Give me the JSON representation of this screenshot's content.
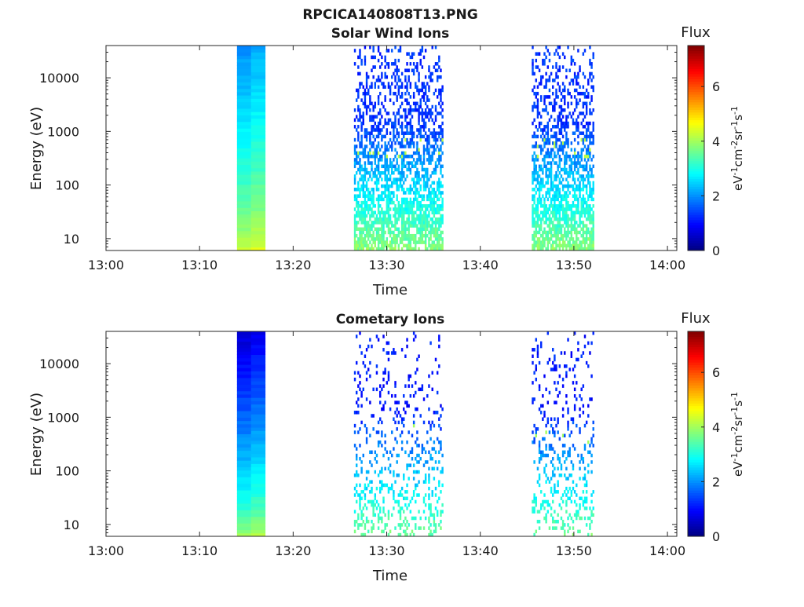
{
  "figure_title": "RPCICA140808T13.PNG",
  "colormap": [
    "#00007f",
    "#0000ff",
    "#007fff",
    "#00ffff",
    "#7fff7f",
    "#ffff00",
    "#ff7f00",
    "#ff0000",
    "#7f0000"
  ],
  "chart_data": [
    {
      "type": "heatmap",
      "title": "Solar Wind Ions",
      "xlabel": "Time",
      "ylabel": "Energy (eV)",
      "x_ticks": [
        "13:00",
        "13:10",
        "13:20",
        "13:30",
        "13:40",
        "13:50",
        "14:00"
      ],
      "xlim": [
        "13:00",
        "14:01"
      ],
      "y_scale": "log",
      "y_ticks": [
        "10",
        "100",
        "1000",
        "10000"
      ],
      "ylim": [
        6,
        40000
      ],
      "colorbar": {
        "label": "Flux",
        "unit_label": "eV-1cm-2sr-1s-1",
        "ticks": [
          "0",
          "2",
          "4",
          "6"
        ],
        "range": [
          0,
          7.5
        ]
      },
      "segments": [
        {
          "start": "13:14",
          "end": "13:17",
          "type": "continuous",
          "lowE_flux": 4.3,
          "highE_flux": 2.0
        },
        {
          "start": "13:26.5",
          "end": "13:36",
          "type": "sparse",
          "lowE_flux": 3.8,
          "highE_flux": 1.3,
          "hot_flux": 4.2
        },
        {
          "start": "13:45.5",
          "end": "13:52",
          "type": "sparse",
          "lowE_flux": 3.8,
          "highE_flux": 1.3,
          "hot_flux": 4.2
        }
      ]
    },
    {
      "type": "heatmap",
      "title": "Cometary Ions",
      "xlabel": "Time",
      "ylabel": "Energy (eV)",
      "x_ticks": [
        "13:00",
        "13:10",
        "13:20",
        "13:30",
        "13:40",
        "13:50",
        "14:00"
      ],
      "xlim": [
        "13:00",
        "14:01"
      ],
      "y_scale": "log",
      "y_ticks": [
        "10",
        "100",
        "1000",
        "10000"
      ],
      "ylim": [
        6,
        40000
      ],
      "colorbar": {
        "label": "Flux",
        "unit_label": "eV-1cm-2sr-1s-1",
        "ticks": [
          "0",
          "2",
          "4",
          "6"
        ],
        "range": [
          0,
          7.5
        ]
      },
      "segments": [
        {
          "start": "13:14",
          "end": "13:17",
          "type": "continuous",
          "lowE_flux": 4.0,
          "highE_flux": 0.6
        },
        {
          "start": "13:26.5",
          "end": "13:36",
          "type": "sparse",
          "lowE_flux": 3.6,
          "highE_flux": 1.1,
          "hot_flux": 4.0
        },
        {
          "start": "13:45.5",
          "end": "13:52",
          "type": "sparse",
          "lowE_flux": 3.6,
          "highE_flux": 1.1,
          "hot_flux": 4.0
        }
      ]
    }
  ]
}
